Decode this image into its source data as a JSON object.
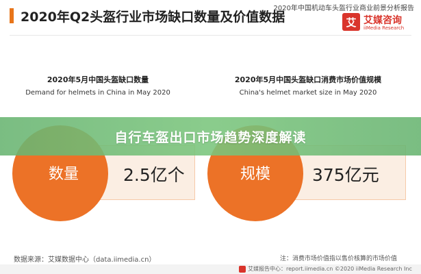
{
  "header": {
    "title": "2020年Q2头盔行业市场缺口数量及价值数据",
    "report_label": "2020年中国机动车头盔行业商业前景分析报告",
    "logo": {
      "mark": "艾",
      "name": "艾媒咨询",
      "subtitle": "iiMedia Research"
    },
    "accent_color": "#e8751a",
    "brand_color": "#d9342b"
  },
  "banner": {
    "text": "自行车盔出口市场趋势深度解读",
    "color": "#6cb873"
  },
  "chart_data": [
    {
      "type": "table",
      "title": "2020年5月中国头盔缺口数量",
      "subtitle": "Demand for helmets in China in May 2020",
      "label": "数量",
      "value": "2.5亿个",
      "circle_color": "#ec7227"
    },
    {
      "type": "table",
      "title": "2020年5月中国头盔缺口消费市场价值规模",
      "subtitle": "China's helmet market size in May 2020",
      "label": "规模",
      "value": "375亿元",
      "circle_color": "#ec7227"
    }
  ],
  "footer": {
    "source": "数据来源：艾媒数据中心（data.iimedia.cn）",
    "note": "注：消费市场价值指以售价核算的市场价值",
    "bottom": "艾媒报告中心：report.iimedia.cn ©2020 iiMedia Research Inc"
  }
}
